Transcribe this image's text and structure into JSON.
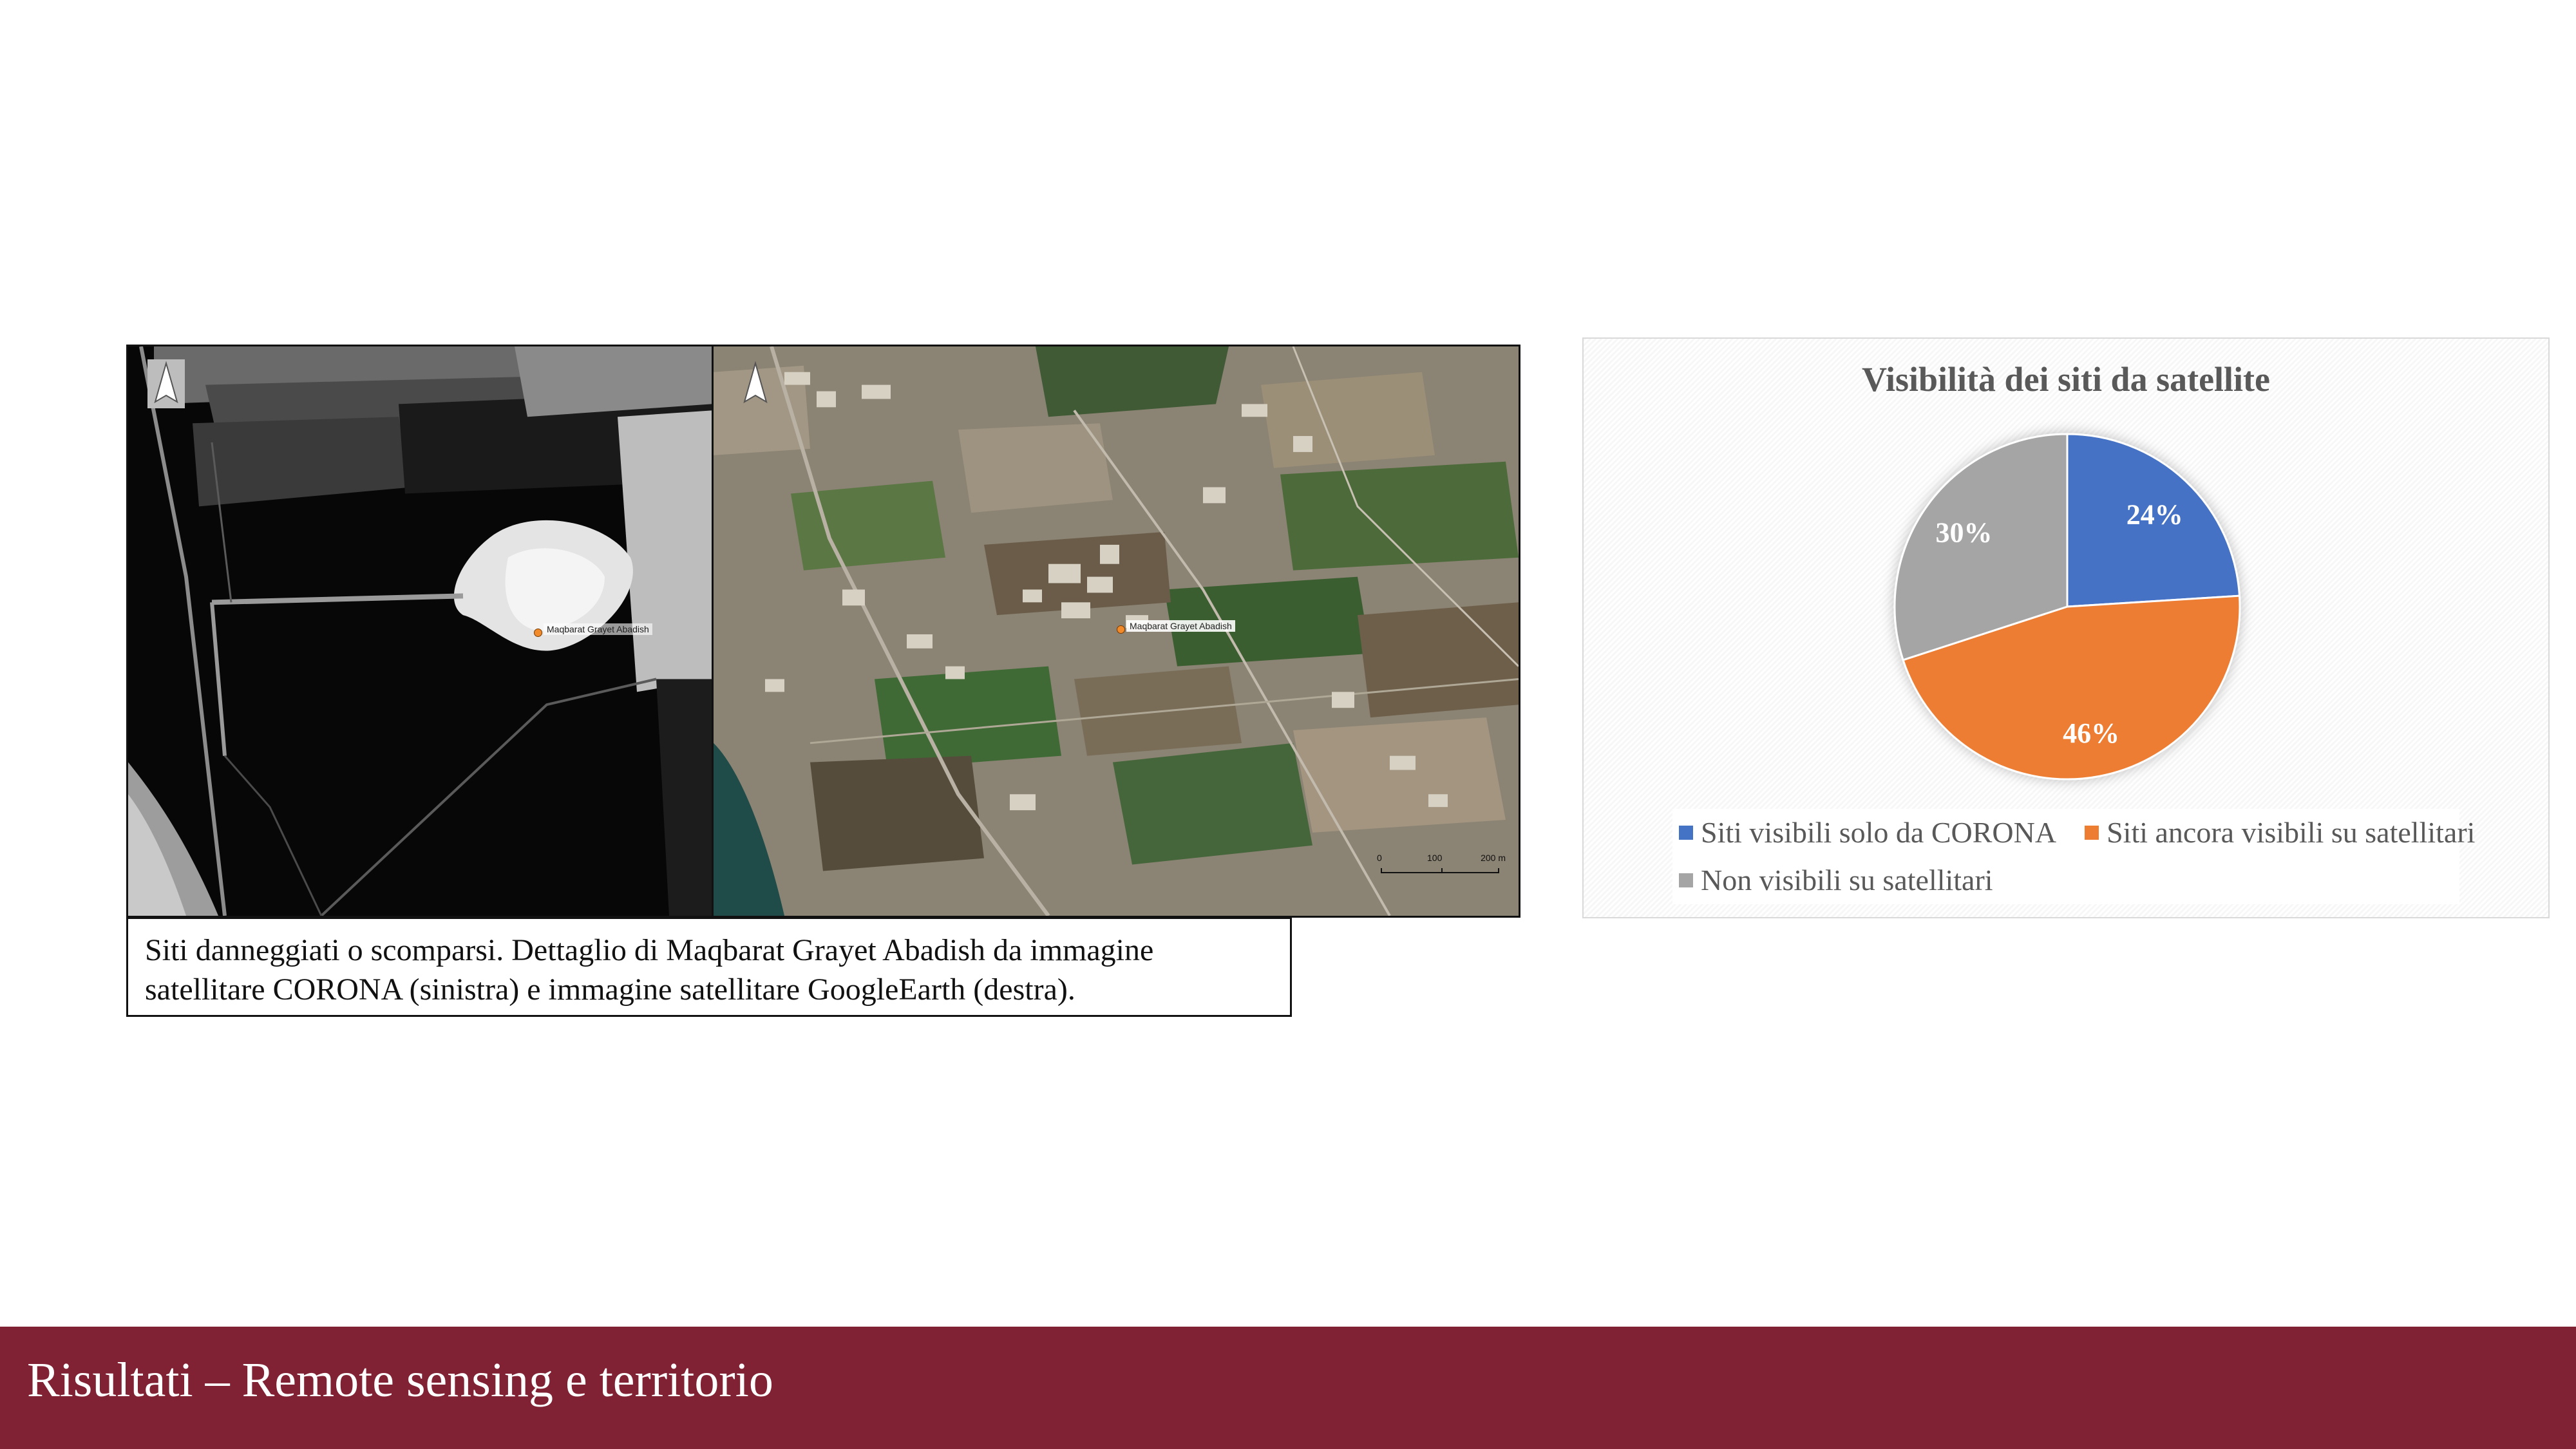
{
  "figure": {
    "left_panel_site_label": "Maqbarat Grayet Abadish",
    "right_panel_site_label": "Maqbarat Grayet Abadish",
    "scalebar": {
      "labels": [
        "0",
        "100",
        "200 m"
      ]
    },
    "north_arrow_icon": "north-arrow-icon",
    "caption": {
      "line1": "Siti danneggiati o scomparsi. Dettaglio di Maqbarat Grayet Abadish da immagine",
      "line2": "satellitare CORONA (sinistra) e immagine satellitare GoogleEarth (destra)."
    }
  },
  "chart_data": {
    "type": "pie",
    "title": "Visibilità dei siti da satellite",
    "categories": [
      "Siti visibili solo da CORONA",
      "Siti ancora visibili su satellitari",
      "Non visibili su satellitari"
    ],
    "values": [
      24,
      46,
      30
    ],
    "labels": [
      "24%",
      "46%",
      "30%"
    ],
    "colors": [
      "#4472C4",
      "#ED7D31",
      "#A5A5A5"
    ],
    "legend_position": "bottom"
  },
  "footer": {
    "title": "Risultati – Remote sensing e territorio",
    "background": "#812234"
  }
}
